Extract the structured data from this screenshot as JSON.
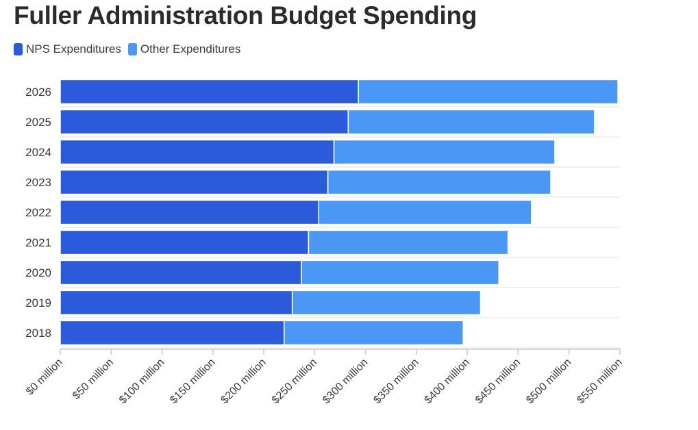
{
  "chart_data": {
    "type": "bar",
    "orientation": "horizontal",
    "stacked": true,
    "title": "Fuller Administration Budget Spending",
    "xlabel": "",
    "ylabel": "",
    "xlim": [
      0,
      550
    ],
    "x_ticks": [
      "$0 million",
      "$50 million",
      "$100 million",
      "$150 million",
      "$200 million",
      "$250 million",
      "$300 million",
      "$350 million",
      "$400 million",
      "$450 million",
      "$500 million",
      "$550 million"
    ],
    "categories": [
      "2026",
      "2025",
      "2024",
      "2023",
      "2022",
      "2021",
      "2020",
      "2019",
      "2018"
    ],
    "series": [
      {
        "name": "NPS Expenditures",
        "color": "#2b5bdb",
        "values": [
          293,
          283,
          269,
          263,
          254,
          244,
          237,
          228,
          220
        ]
      },
      {
        "name": "Other Expenditures",
        "color": "#4a97f5",
        "values": [
          255,
          242,
          217,
          219,
          209,
          196,
          194,
          185,
          176
        ]
      }
    ],
    "grid": "horizontal",
    "legend_position": "top-left"
  }
}
